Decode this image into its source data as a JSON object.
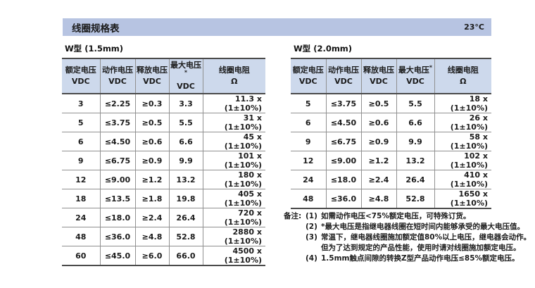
{
  "title_bar": {
    "title": "线圈规格表",
    "temperature": "23°C"
  },
  "colors": {
    "title_bar_bg": "#b7c4e2",
    "table_header_bg": "#cdd9ec",
    "border_dark": "#4b4b4b",
    "border_light": "#909090",
    "text": "#1c1c1c"
  },
  "tables": [
    {
      "caption": "W型 (1.5mm)",
      "headers": [
        {
          "line1": "额定电压",
          "sup": "",
          "line2": "VDC"
        },
        {
          "line1": "动作电压",
          "sup": "",
          "line2": "VDC"
        },
        {
          "line1": "释放电压",
          "sup": "",
          "line2": "VDC"
        },
        {
          "line1": "最大电压",
          "sup": "*",
          "line2": "VDC"
        },
        {
          "line1": "线圈电阻",
          "sup": "",
          "line2": "Ω"
        }
      ],
      "rows": [
        [
          "3",
          "≤2.25",
          "≥0.3",
          "3.3",
          "11.3 x (1±10%)"
        ],
        [
          "5",
          "≤3.75",
          "≥0.5",
          "5.5",
          "31 x (1±10%)"
        ],
        [
          "6",
          "≤4.50",
          "≥0.6",
          "6.6",
          "45 x (1±10%)"
        ],
        [
          "9",
          "≤6.75",
          "≥0.9",
          "9.9",
          "101 x (1±10%)"
        ],
        [
          "12",
          "≤9.00",
          "≥1.2",
          "13.2",
          "180 x (1±10%)"
        ],
        [
          "18",
          "≤13.5",
          "≥1.8",
          "19.8",
          "405 x (1±10%)"
        ],
        [
          "24",
          "≤18.0",
          "≥2.4",
          "26.4",
          "720 x (1±10%)"
        ],
        [
          "48",
          "≤36.0",
          "≥4.8",
          "52.8",
          "2880 x (1±10%)"
        ],
        [
          "60",
          "≤45.0",
          "≥6.0",
          "66.0",
          "4500 x (1±10%)"
        ]
      ]
    },
    {
      "caption": "W型 (2.0mm)",
      "headers": [
        {
          "line1": "额定电压",
          "sup": "",
          "line2": "VDC"
        },
        {
          "line1": "动作电压",
          "sup": "",
          "line2": "VDC"
        },
        {
          "line1": "释放电压",
          "sup": "",
          "line2": "VDC"
        },
        {
          "line1": "最大电压",
          "sup": "*",
          "line2": "VDC"
        },
        {
          "line1": "线圈电阻",
          "sup": "",
          "line2": "Ω"
        }
      ],
      "rows": [
        [
          "5",
          "≤3.75",
          "≥0.5",
          "5.5",
          "18 x (1±10%)"
        ],
        [
          "6",
          "≤4.50",
          "≥0.6",
          "6.6",
          "26 x (1±10%)"
        ],
        [
          "9",
          "≤6.75",
          "≥0.9",
          "9.9",
          "58 x (1±10%)"
        ],
        [
          "12",
          "≤9.00",
          "≥1.2",
          "13.2",
          "102 x (1±10%)"
        ],
        [
          "24",
          "≤18.0",
          "≥2.4",
          "26.4",
          "410 x (1±10%)"
        ],
        [
          "48",
          "≤36.0",
          "≥4.8",
          "52.8",
          "1650 x (1±10%)"
        ]
      ]
    }
  ],
  "notes": {
    "label": "备注:",
    "items": [
      {
        "num": "(1)",
        "text": "如需动作电压<75%额定电压，可特殊订货。"
      },
      {
        "num": "(2)",
        "text": "*最大电压是指继电器线圈在短时间内能够承受的最大电压值。"
      },
      {
        "num": "(3)",
        "text": "常温下，继电器线圈施加额定值80%以上电压，继电器会动作。但为了达到规定的产品性能，使用时请对线圈施加额定电压。"
      },
      {
        "num": "(4)",
        "text": "1.5mm触点间隙的转换Z型产品动作电压≤85%额定电压。"
      }
    ]
  }
}
